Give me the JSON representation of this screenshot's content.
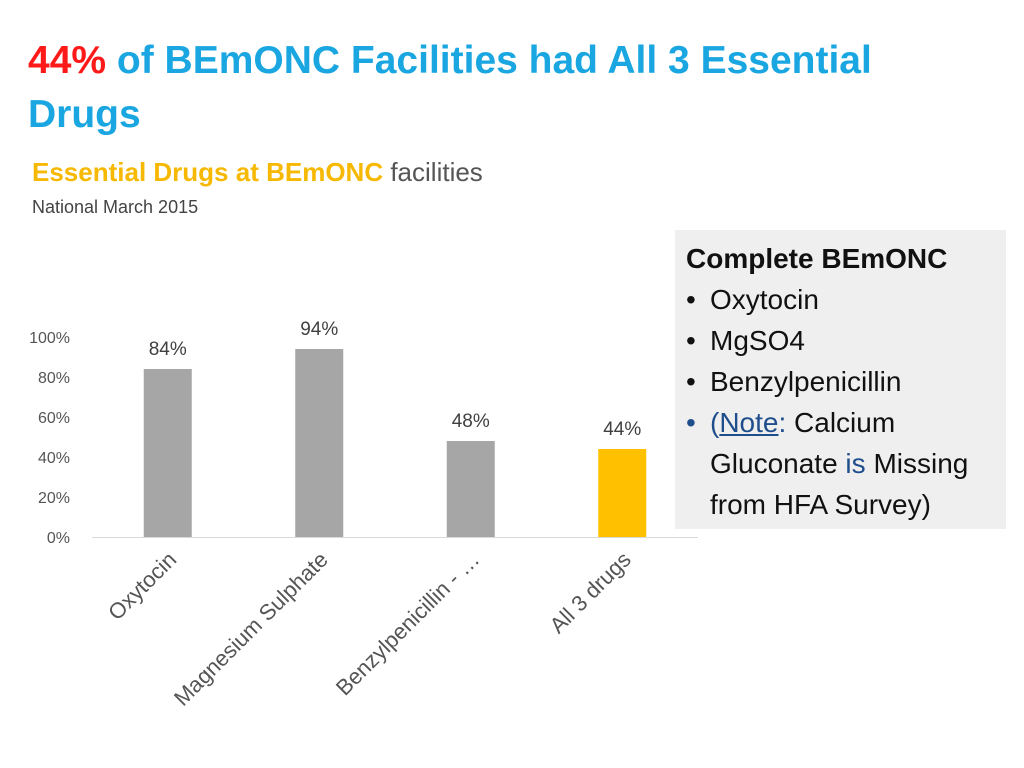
{
  "header": {
    "title_accent": "44%",
    "title_rest": "of BEmONC Facilities had All 3 Essential Drugs"
  },
  "subtitle": {
    "highlight": "Essential Drugs at BEmONC",
    "rest": "facilities"
  },
  "caption": "National March 2015",
  "chart_data": {
    "type": "bar",
    "categories": [
      "Oxytocin",
      "Magnesium Sulphate",
      "Benzylpenicillin - …",
      "All 3 drugs"
    ],
    "values": [
      84,
      94,
      48,
      44
    ],
    "data_labels": [
      "84%",
      "94%",
      "48%",
      "44%"
    ],
    "bar_colors": [
      "#a6a6a6",
      "#a6a6a6",
      "#a6a6a6",
      "#ffc000"
    ],
    "yticks": [
      0,
      20,
      40,
      60,
      80,
      100
    ],
    "ytick_labels": [
      "0%",
      "20%",
      "40%",
      "60%",
      "80%",
      "100%"
    ],
    "ylim": [
      0,
      100
    ],
    "title": "",
    "xlabel": "",
    "ylabel": "",
    "grid": false,
    "legend": "none"
  },
  "infobox": {
    "title": "Complete BEmONC",
    "items": [
      "Oxytocin",
      "MgSO4",
      "Benzylpenicillin"
    ],
    "note": {
      "open": "(",
      "label": "Note",
      "colon": ":",
      "text1": "Calcium Gluconate",
      "word_is": "is",
      "text2": "Missing from HFA Survey)"
    }
  },
  "colors": {
    "title_accent": "#ff1a1a",
    "title": "#1aa6e0",
    "subtitle_highlight": "#f6b800",
    "highlight_bar": "#ffc000",
    "bar": "#a6a6a6",
    "note": "#1f4e8c"
  }
}
